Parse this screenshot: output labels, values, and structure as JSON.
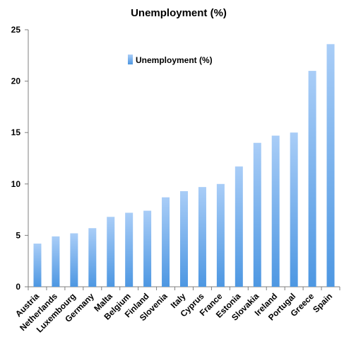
{
  "chart_data": {
    "type": "bar",
    "title": "Unemployment (%)",
    "xlabel": "",
    "ylabel": "",
    "ylim": [
      0,
      25
    ],
    "yticks": [
      0,
      5,
      10,
      15,
      20,
      25
    ],
    "grid": false,
    "legend_position": "top-center",
    "categories": [
      "Austria",
      "Netherlands",
      "Luxembourg",
      "Germany",
      "Malta",
      "Belgium",
      "Finland",
      "Slovenia",
      "Italy",
      "Cyprus",
      "France",
      "Estonia",
      "Slovakia",
      "Ireland",
      "Portugal",
      "Greece",
      "Spain"
    ],
    "series": [
      {
        "name": "Unemployment (%)",
        "values": [
          4.2,
          4.9,
          5.2,
          5.7,
          6.8,
          7.2,
          7.4,
          8.7,
          9.3,
          9.7,
          10.0,
          11.7,
          14.0,
          14.7,
          15.0,
          21.0,
          23.6
        ],
        "color": "#5aa0e6"
      }
    ]
  }
}
